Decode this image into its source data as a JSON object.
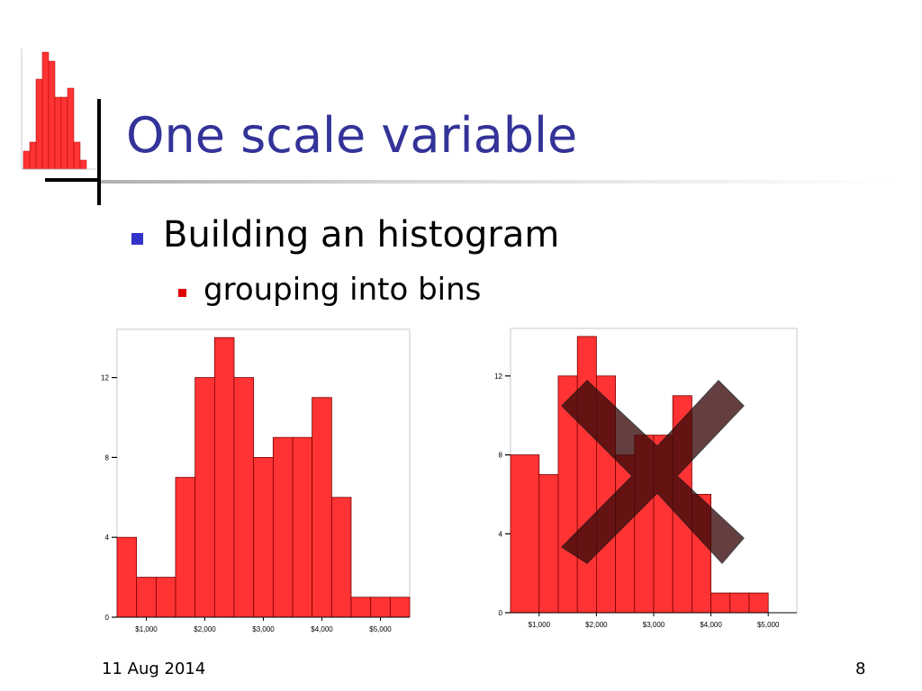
{
  "slide": {
    "title": "One scale variable",
    "bullet_level1": "Building an histogram",
    "bullet_level2": "grouping into bins",
    "footer_date": "11 Aug 2014",
    "page_number": "8"
  },
  "colors": {
    "title": "#333399",
    "bar_fill": "#ff3333",
    "bar_stroke": "#7a0000",
    "cross": "#3a0a0a"
  },
  "chart_data": [
    {
      "type": "bar",
      "title": "",
      "xlabel": "",
      "ylabel": "",
      "xlim": [
        500,
        5500
      ],
      "ylim": [
        0,
        15
      ],
      "yticks": [
        0,
        4,
        8,
        12
      ],
      "xtick_values": [
        1000,
        2000,
        3000,
        4000,
        5000
      ],
      "xtick_labels": [
        "$1,000",
        "$2,000",
        "$3,000",
        "$4,000",
        "$5,000"
      ],
      "bins": [
        {
          "from": 500,
          "to": 833,
          "count": 4
        },
        {
          "from": 833,
          "to": 1167,
          "count": 2
        },
        {
          "from": 1167,
          "to": 1500,
          "count": 2
        },
        {
          "from": 1500,
          "to": 1833,
          "count": 7
        },
        {
          "from": 1833,
          "to": 2167,
          "count": 12
        },
        {
          "from": 2167,
          "to": 2500,
          "count": 14
        },
        {
          "from": 2500,
          "to": 2833,
          "count": 12
        },
        {
          "from": 2833,
          "to": 3167,
          "count": 8
        },
        {
          "from": 3167,
          "to": 3500,
          "count": 9
        },
        {
          "from": 3500,
          "to": 3833,
          "count": 9
        },
        {
          "from": 3833,
          "to": 4167,
          "count": 11
        },
        {
          "from": 4167,
          "to": 4500,
          "count": 6
        },
        {
          "from": 4500,
          "to": 4833,
          "count": 1
        },
        {
          "from": 4833,
          "to": 5167,
          "count": 1
        },
        {
          "from": 5167,
          "to": 5500,
          "count": 1
        }
      ]
    },
    {
      "type": "bar",
      "title": "",
      "xlabel": "",
      "ylabel": "",
      "xlim": [
        500,
        5500
      ],
      "ylim": [
        0,
        14.5
      ],
      "yticks": [
        0,
        4,
        8,
        12
      ],
      "xtick_values": [
        1000,
        2000,
        3000,
        4000,
        5000
      ],
      "xtick_labels": [
        "$1,000",
        "$2,000",
        "$3,000",
        "$4,000",
        "$5,000"
      ],
      "crossed_out": true,
      "bins": [
        {
          "from": 500,
          "to": 1000,
          "count": 8
        },
        {
          "from": 1000,
          "to": 1333,
          "count": 7
        },
        {
          "from": 1333,
          "to": 1667,
          "count": 12
        },
        {
          "from": 1667,
          "to": 2000,
          "count": 14
        },
        {
          "from": 2000,
          "to": 2333,
          "count": 12
        },
        {
          "from": 2333,
          "to": 2667,
          "count": 8
        },
        {
          "from": 2667,
          "to": 3000,
          "count": 9
        },
        {
          "from": 3000,
          "to": 3333,
          "count": 9
        },
        {
          "from": 3333,
          "to": 3667,
          "count": 11
        },
        {
          "from": 3667,
          "to": 4000,
          "count": 6
        },
        {
          "from": 4000,
          "to": 4333,
          "count": 1
        },
        {
          "from": 4333,
          "to": 4667,
          "count": 1
        },
        {
          "from": 4667,
          "to": 5000,
          "count": 1
        }
      ]
    }
  ],
  "decoration_histogram": {
    "values": [
      2,
      3,
      10,
      13,
      12,
      8,
      8,
      9,
      3,
      1
    ]
  }
}
